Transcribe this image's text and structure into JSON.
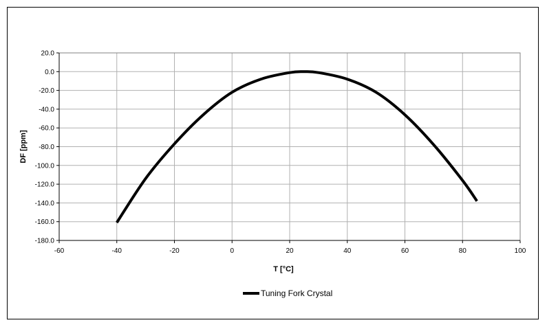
{
  "chart_data": {
    "type": "line",
    "title": "",
    "xlabel": "T [°C]",
    "ylabel": "DF [ppm]",
    "xlim": [
      -60,
      100
    ],
    "ylim": [
      -180,
      20
    ],
    "xticks": [
      -60,
      -40,
      -20,
      0,
      20,
      40,
      60,
      80,
      100
    ],
    "yticks": [
      20,
      0,
      -20,
      -40,
      -60,
      -80,
      -100,
      -120,
      -140,
      -160,
      -180
    ],
    "xtick_labels": [
      "-60",
      "-40",
      "-20",
      "0",
      "20",
      "40",
      "60",
      "80",
      "100"
    ],
    "ytick_labels": [
      "20.0",
      "0.0",
      "-20.0",
      "-40.0",
      "-60.0",
      "-80.0",
      "-100.0",
      "-120.0",
      "-140.0",
      "-160.0",
      "-180.0"
    ],
    "grid": true,
    "legend_position": "bottom",
    "series": [
      {
        "name": "Tuning Fork Crystal",
        "color": "#000000",
        "x": [
          -40,
          -30,
          -20,
          -10,
          0,
          10,
          20,
          25,
          30,
          40,
          50,
          60,
          70,
          80,
          85
        ],
        "y": [
          -161,
          -114,
          -77,
          -46,
          -22,
          -8,
          -1,
          0,
          -1,
          -8,
          -22,
          -46,
          -78,
          -116,
          -138
        ]
      }
    ]
  }
}
